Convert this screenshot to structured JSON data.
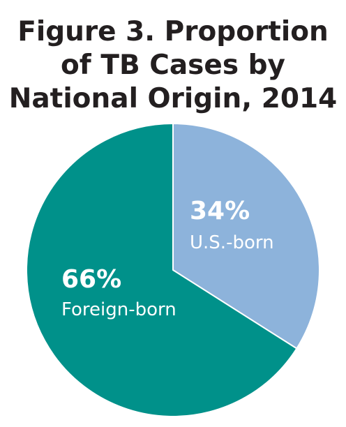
{
  "chart_data": {
    "type": "pie",
    "title_lines": [
      "Figure 3. Proportion",
      "of TB Cases by",
      "National Origin, 2014"
    ],
    "slices": [
      {
        "label": "U.S.-born",
        "value": 34,
        "value_text": "34%",
        "color": "#8db3db"
      },
      {
        "label": "Foreign-born",
        "value": 66,
        "value_text": "66%",
        "color": "#00918a"
      }
    ],
    "legend": "none"
  }
}
